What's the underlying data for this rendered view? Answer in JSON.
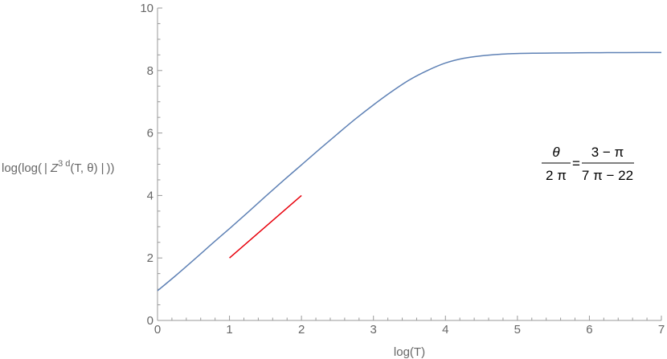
{
  "chart_data": {
    "type": "line",
    "xlabel": "log(T)",
    "ylabel": {
      "prefix": "log(log(",
      "bar": "|",
      "symbol": "Z",
      "superscript": "3 d",
      "args": "(T, θ)",
      "suffix": "))"
    },
    "xlim": [
      0,
      7
    ],
    "ylim": [
      0,
      10
    ],
    "xticks": [
      "0",
      "1",
      "2",
      "3",
      "4",
      "5",
      "6",
      "7"
    ],
    "yticks": [
      "0",
      "2",
      "4",
      "6",
      "8",
      "10"
    ],
    "xtick_values": [
      0,
      1,
      2,
      3,
      4,
      5,
      6,
      7
    ],
    "ytick_values": [
      0,
      2,
      4,
      6,
      8,
      10
    ],
    "grid": false,
    "series": [
      {
        "color": "#5e81b5",
        "x": [
          0,
          0.25,
          0.5,
          0.75,
          1.0,
          1.25,
          1.5,
          1.75,
          2.0,
          2.25,
          2.5,
          2.75,
          3.0,
          3.25,
          3.5,
          3.75,
          4.0,
          4.25,
          4.5,
          4.75,
          5.0,
          5.25,
          5.5,
          5.75,
          6.0,
          6.25,
          6.5,
          6.75,
          7.0
        ],
        "y": [
          0.95,
          1.43,
          1.93,
          2.44,
          2.94,
          3.45,
          3.97,
          4.48,
          4.98,
          5.48,
          5.97,
          6.45,
          6.9,
          7.32,
          7.7,
          8.0,
          8.24,
          8.39,
          8.47,
          8.52,
          8.545,
          8.555,
          8.56,
          8.565,
          8.57,
          8.572,
          8.574,
          8.576,
          8.578
        ]
      },
      {
        "color": "#e8000b",
        "x": [
          1,
          2
        ],
        "y": [
          2,
          4
        ]
      }
    ],
    "annotation": {
      "lhs_num": "θ",
      "lhs_den": "2 π",
      "eq": "=",
      "rhs_num": "3 − π",
      "rhs_den": "7 π − 22"
    }
  }
}
